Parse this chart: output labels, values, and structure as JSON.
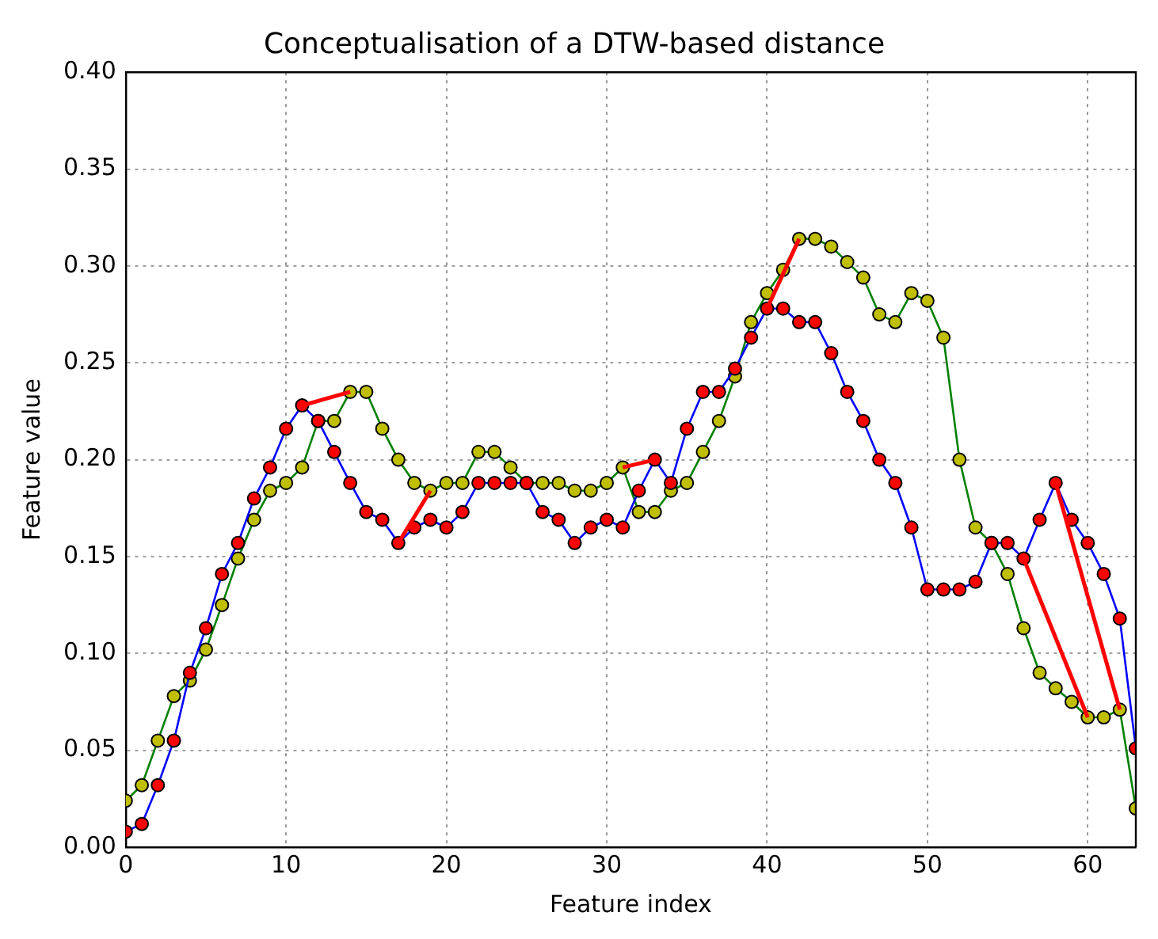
{
  "chart_data": {
    "type": "line",
    "title": "Conceptualisation of a DTW-based distance",
    "xlabel": "Feature index",
    "ylabel": "Feature value",
    "x": [
      0,
      1,
      2,
      3,
      4,
      5,
      6,
      7,
      8,
      9,
      10,
      11,
      12,
      13,
      14,
      15,
      16,
      17,
      18,
      19,
      20,
      21,
      22,
      23,
      24,
      25,
      26,
      27,
      28,
      29,
      30,
      31,
      32,
      33,
      34,
      35,
      36,
      37,
      38,
      39,
      40,
      41,
      42,
      43,
      44,
      45,
      46,
      47,
      48,
      49,
      50,
      51,
      52,
      53,
      54,
      55,
      56,
      57,
      58,
      59,
      60,
      61,
      62,
      63
    ],
    "series": [
      {
        "color": "#0000ff",
        "colors": [
          "#ff0000",
          "#ff0000",
          "#ff0000",
          "#ff0000",
          "#ff0000",
          "#ff0000",
          "#ff0000",
          "#ff0000",
          "#ff0000",
          "#ff0000",
          "#ff0000",
          "#ff0000",
          "#ff0000",
          "#ff0000",
          "#ff0000",
          "#ff0000",
          "#ff0000",
          "#ff0000",
          "#ff0000",
          "#ff0000",
          "#ff0000",
          "#ff0000",
          "#ff0000",
          "#ff0000",
          "#ff0000",
          "#ff0000",
          "#ff0000",
          "#ff0000",
          "#ff0000",
          "#ff0000",
          "#ff0000",
          "#ff0000",
          "#ff0000",
          "#ff0000",
          "#ff0000",
          "#ff0000",
          "#ff0000",
          "#ff0000",
          "#ff0000",
          "#ff0000",
          "#ff0000",
          "#ff0000",
          "#ff0000",
          "#ff0000",
          "#ff0000",
          "#ff0000",
          "#ff0000",
          "#ff0000",
          "#ff0000",
          "#ff0000",
          "#ff0000",
          "#ff0000",
          "#ff0000",
          "#ff0000",
          "#ff0000",
          "#ff0000",
          "#ff0000",
          "#ff0000",
          "#ff0000",
          "#ff0000",
          "#ff0000",
          "#ff0000",
          "#ff0000",
          "#ff0000"
        ],
        "values": [
          0.008,
          0.012,
          0.032,
          0.055,
          0.09,
          0.113,
          0.141,
          0.157,
          0.18,
          0.196,
          0.216,
          0.228,
          0.22,
          0.204,
          0.188,
          0.173,
          0.169,
          0.157,
          0.165,
          0.169,
          0.165,
          0.173,
          0.188,
          0.188,
          0.188,
          0.188,
          0.173,
          0.169,
          0.157,
          0.165,
          0.169,
          0.165,
          0.184,
          0.2,
          0.188,
          0.216,
          0.235,
          0.235,
          0.247,
          0.263,
          0.278,
          0.278,
          0.271,
          0.271,
          0.255,
          0.235,
          0.22,
          0.2,
          0.188,
          0.165,
          0.133,
          0.133,
          0.133,
          0.137,
          0.157,
          0.157,
          0.149,
          0.169,
          0.188,
          0.169,
          0.157,
          0.141,
          0.118,
          0.051
        ]
      },
      {
        "color": "#008000",
        "colors": [
          "#bfbf00",
          "#bfbf00",
          "#bfbf00",
          "#bfbf00",
          "#bfbf00",
          "#bfbf00",
          "#bfbf00",
          "#bfbf00",
          "#bfbf00",
          "#bfbf00",
          "#bfbf00",
          "#bfbf00",
          "#bfbf00",
          "#bfbf00",
          "#bfbf00",
          "#bfbf00",
          "#bfbf00",
          "#bfbf00",
          "#bfbf00",
          "#bfbf00",
          "#bfbf00",
          "#bfbf00",
          "#bfbf00",
          "#bfbf00",
          "#bfbf00",
          "#bfbf00",
          "#bfbf00",
          "#bfbf00",
          "#bfbf00",
          "#bfbf00",
          "#bfbf00",
          "#bfbf00",
          "#bfbf00",
          "#bfbf00",
          "#bfbf00",
          "#bfbf00",
          "#bfbf00",
          "#bfbf00",
          "#bfbf00",
          "#bfbf00",
          "#bfbf00",
          "#bfbf00",
          "#bfbf00",
          "#bfbf00",
          "#bfbf00",
          "#bfbf00",
          "#bfbf00",
          "#bfbf00",
          "#bfbf00",
          "#bfbf00",
          "#bfbf00",
          "#bfbf00",
          "#bfbf00",
          "#bfbf00",
          "#bfbf00",
          "#bfbf00",
          "#bfbf00",
          "#bfbf00",
          "#bfbf00",
          "#bfbf00",
          "#bfbf00",
          "#bfbf00",
          "#bfbf00",
          "#bfbf00"
        ],
        "values": [
          0.024,
          0.032,
          0.055,
          0.078,
          0.086,
          0.102,
          0.125,
          0.149,
          0.169,
          0.184,
          0.188,
          0.196,
          0.22,
          0.22,
          0.235,
          0.235,
          0.216,
          0.2,
          0.188,
          0.184,
          0.188,
          0.188,
          0.204,
          0.204,
          0.196,
          0.188,
          0.188,
          0.188,
          0.184,
          0.184,
          0.188,
          0.196,
          0.173,
          0.173,
          0.184,
          0.188,
          0.204,
          0.22,
          0.243,
          0.271,
          0.286,
          0.298,
          0.314,
          0.314,
          0.31,
          0.302,
          0.294,
          0.275,
          0.271,
          0.286,
          0.282,
          0.263,
          0.2,
          0.165,
          0.157,
          0.141,
          0.113,
          0.09,
          0.082,
          0.075,
          0.067,
          0.067,
          0.071,
          0.02
        ]
      },
      {
        "color": "#ff0000",
        "marker": "none",
        "x": [
          11,
          14
        ],
        "values": [
          0.228,
          0.235
        ]
      },
      {
        "color": "#ff0000",
        "marker": "none",
        "x": [
          17,
          19
        ],
        "values": [
          0.157,
          0.184
        ]
      },
      {
        "color": "#ff0000",
        "marker": "none",
        "x": [
          31,
          33
        ],
        "values": [
          0.196,
          0.2
        ]
      },
      {
        "color": "#ff0000",
        "marker": "none",
        "x": [
          40,
          42
        ],
        "values": [
          0.278,
          0.314
        ]
      },
      {
        "color": "#ff0000",
        "marker": "none",
        "x": [
          56,
          60
        ],
        "values": [
          0.149,
          0.067
        ]
      },
      {
        "color": "#ff0000",
        "marker": "none",
        "x": [
          58,
          62
        ],
        "values": [
          0.188,
          0.071
        ]
      }
    ],
    "xlim": [
      0,
      63
    ],
    "xticks": [
      0,
      10,
      20,
      30,
      40,
      50,
      60
    ],
    "ylim": [
      0,
      0.4
    ],
    "yticks": [
      {
        "value": 0,
        "label": "0.00"
      },
      0.05,
      {
        "value": 0.1,
        "label": "0.10"
      },
      0.15,
      {
        "value": 0.2,
        "label": "0.20"
      },
      0.25,
      {
        "value": 0.3,
        "label": "0.30"
      },
      0.35,
      {
        "value": 0.4,
        "label": "0.40"
      }
    ],
    "grid": true,
    "legend": false,
    "marker": "circle",
    "line_style": "solid"
  }
}
